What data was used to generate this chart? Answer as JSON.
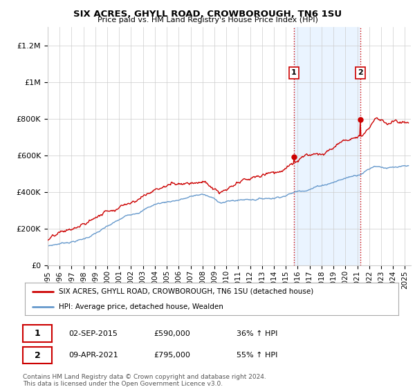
{
  "title": "SIX ACRES, GHYLL ROAD, CROWBOROUGH, TN6 1SU",
  "subtitle": "Price paid vs. HM Land Registry's House Price Index (HPI)",
  "bg_color": "#ffffff",
  "plot_bg_color": "#ffffff",
  "grid_color": "#cccccc",
  "line1_color": "#cc0000",
  "line2_color": "#6699cc",
  "shade_color": "#ddeeff",
  "sale1_date": 2015.67,
  "sale1_price": 590000,
  "sale2_date": 2021.27,
  "sale2_price": 795000,
  "ylabel_items": [
    "£0",
    "£200K",
    "£400K",
    "£600K",
    "£800K",
    "£1M",
    "£1.2M"
  ],
  "ylabel_values": [
    0,
    200000,
    400000,
    600000,
    800000,
    1000000,
    1200000
  ],
  "ylim": [
    0,
    1300000
  ],
  "xlim_start": 1995.0,
  "xlim_end": 2025.5,
  "legend_line1": "SIX ACRES, GHYLL ROAD, CROWBOROUGH, TN6 1SU (detached house)",
  "legend_line2": "HPI: Average price, detached house, Wealden",
  "footer": "Contains HM Land Registry data © Crown copyright and database right 2024.\nThis data is licensed under the Open Government Licence v3.0.",
  "xtick_years": [
    1995,
    1996,
    1997,
    1998,
    1999,
    2000,
    2001,
    2002,
    2003,
    2004,
    2005,
    2006,
    2007,
    2008,
    2009,
    2010,
    2011,
    2012,
    2013,
    2014,
    2015,
    2016,
    2017,
    2018,
    2019,
    2020,
    2021,
    2022,
    2023,
    2024,
    2025
  ],
  "ann1_date": "02-SEP-2015",
  "ann1_price": "£590,000",
  "ann1_hpi": "36% ↑ HPI",
  "ann2_date": "09-APR-2021",
  "ann2_price": "£795,000",
  "ann2_hpi": "55% ↑ HPI"
}
